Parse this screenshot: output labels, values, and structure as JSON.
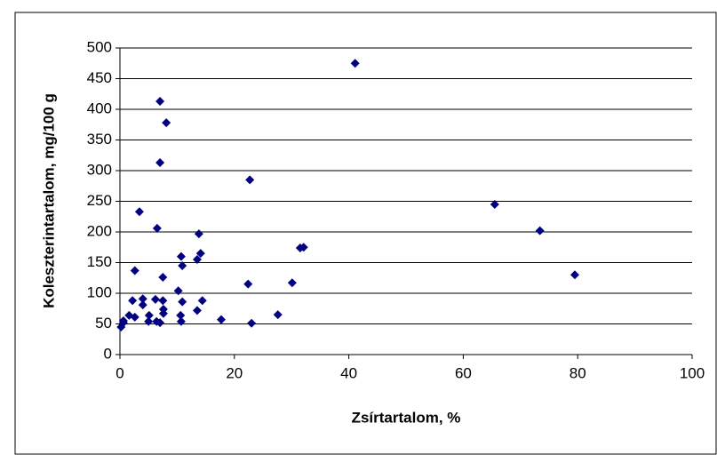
{
  "chart_data": {
    "type": "scatter",
    "xlabel": "Zsírtartalom, %",
    "ylabel": "Koleszterintartalom, mg/100 g",
    "color": "#000080",
    "grid": true,
    "xlim": [
      0,
      100
    ],
    "xticks": [
      0,
      20,
      40,
      60,
      80,
      100
    ],
    "ylim": [
      0,
      500
    ],
    "yticks": [
      0,
      50,
      100,
      150,
      200,
      250,
      300,
      350,
      400,
      450,
      500
    ],
    "x": [
      41.1,
      7.0,
      8.1,
      7.0,
      22.7,
      3.4,
      65.5,
      73.4,
      79.5,
      6.5,
      13.8,
      14.1,
      13.5,
      10.7,
      10.9,
      31.5,
      32.1,
      2.6,
      7.5,
      22.4,
      30.1,
      10.2,
      2.2,
      4.0,
      4.0,
      6.2,
      7.5,
      7.6,
      7.6,
      14.4,
      10.9,
      13.5,
      5.1,
      10.6,
      27.6,
      17.7,
      0.6,
      1.6,
      2.6,
      5.0,
      6.4,
      7.0,
      10.7,
      23.0,
      0.2,
      0.6
    ],
    "values": [
      475,
      413,
      378,
      313,
      285,
      233,
      245,
      202,
      130,
      206,
      197,
      165,
      155,
      160,
      145,
      174,
      175,
      137,
      126,
      115,
      117,
      104,
      88,
      91,
      81,
      90,
      88,
      74,
      67,
      88,
      86,
      72,
      64,
      64,
      65,
      57,
      55,
      64,
      61,
      54,
      54,
      52,
      54,
      51,
      45,
      52
    ]
  }
}
